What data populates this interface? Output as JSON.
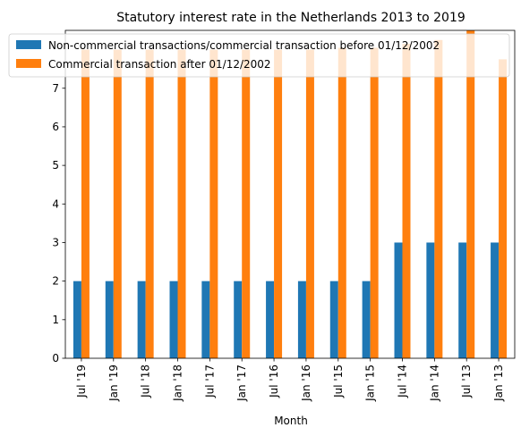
{
  "chart_data": {
    "type": "bar",
    "title": "Statutory interest rate in the Netherlands 2013 to 2019",
    "xlabel": "Month",
    "ylabel": "",
    "categories": [
      "Jul '19",
      "Jan '19",
      "Jul '18",
      "Jan '18",
      "Jul '17",
      "Jan '17",
      "Jul '16",
      "Jan '16",
      "Jul '15",
      "Jan '15",
      "Jul '14",
      "Jan '14",
      "Jul '13",
      "Jan '13"
    ],
    "series": [
      {
        "name": "Non-commercial transactions/commercial transaction before 01/12/2002",
        "color": "#1f77b4",
        "values": [
          2,
          2,
          2,
          2,
          2,
          2,
          2,
          2,
          2,
          2,
          3,
          3,
          3,
          3
        ]
      },
      {
        "name": "Commercial transaction after 01/12/2002",
        "color": "#ff7f0e",
        "values": [
          8,
          8,
          8,
          8,
          8,
          8,
          8,
          8,
          8.05,
          8.05,
          8.15,
          8.25,
          8.5,
          7.75
        ]
      }
    ],
    "ylim": [
      0,
      8.5
    ],
    "yticks": [
      0,
      1,
      2,
      3,
      4,
      5,
      6,
      7
    ],
    "legend_position": "upper-left",
    "grid": false
  }
}
